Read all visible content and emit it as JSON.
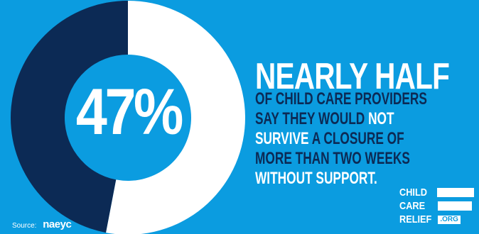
{
  "chart_data": {
    "type": "pie",
    "style": "donut",
    "slices": [
      {
        "value": 47,
        "color": "#0c2a55"
      },
      {
        "value": 53,
        "color": "#ffffff"
      }
    ],
    "center_label": "47%"
  },
  "headline": "NEARLY HALF",
  "body_lines": [
    [
      {
        "text": "OF CHILD CARE PROVIDERS",
        "tone": "dark"
      }
    ],
    [
      {
        "text": "SAY THEY WOULD ",
        "tone": "dark"
      },
      {
        "text": "NOT",
        "tone": "light"
      }
    ],
    [
      {
        "text": "SURVIVE",
        "tone": "light"
      },
      {
        "text": " A CLOSURE OF",
        "tone": "dark"
      }
    ],
    [
      {
        "text": "MORE THAN TWO WEEKS",
        "tone": "dark"
      }
    ],
    [
      {
        "text": "WITHOUT SUPPORT.",
        "tone": "light"
      }
    ]
  ],
  "source": {
    "label": "Source:",
    "brand": "naeyc"
  },
  "logo": {
    "line1": "CHILD",
    "line2": "CARE",
    "line3": "RELIEF",
    "suffix": ".ORG"
  },
  "colors": {
    "background": "#0b9ce0",
    "dark": "#0c2a55",
    "light": "#ffffff"
  }
}
